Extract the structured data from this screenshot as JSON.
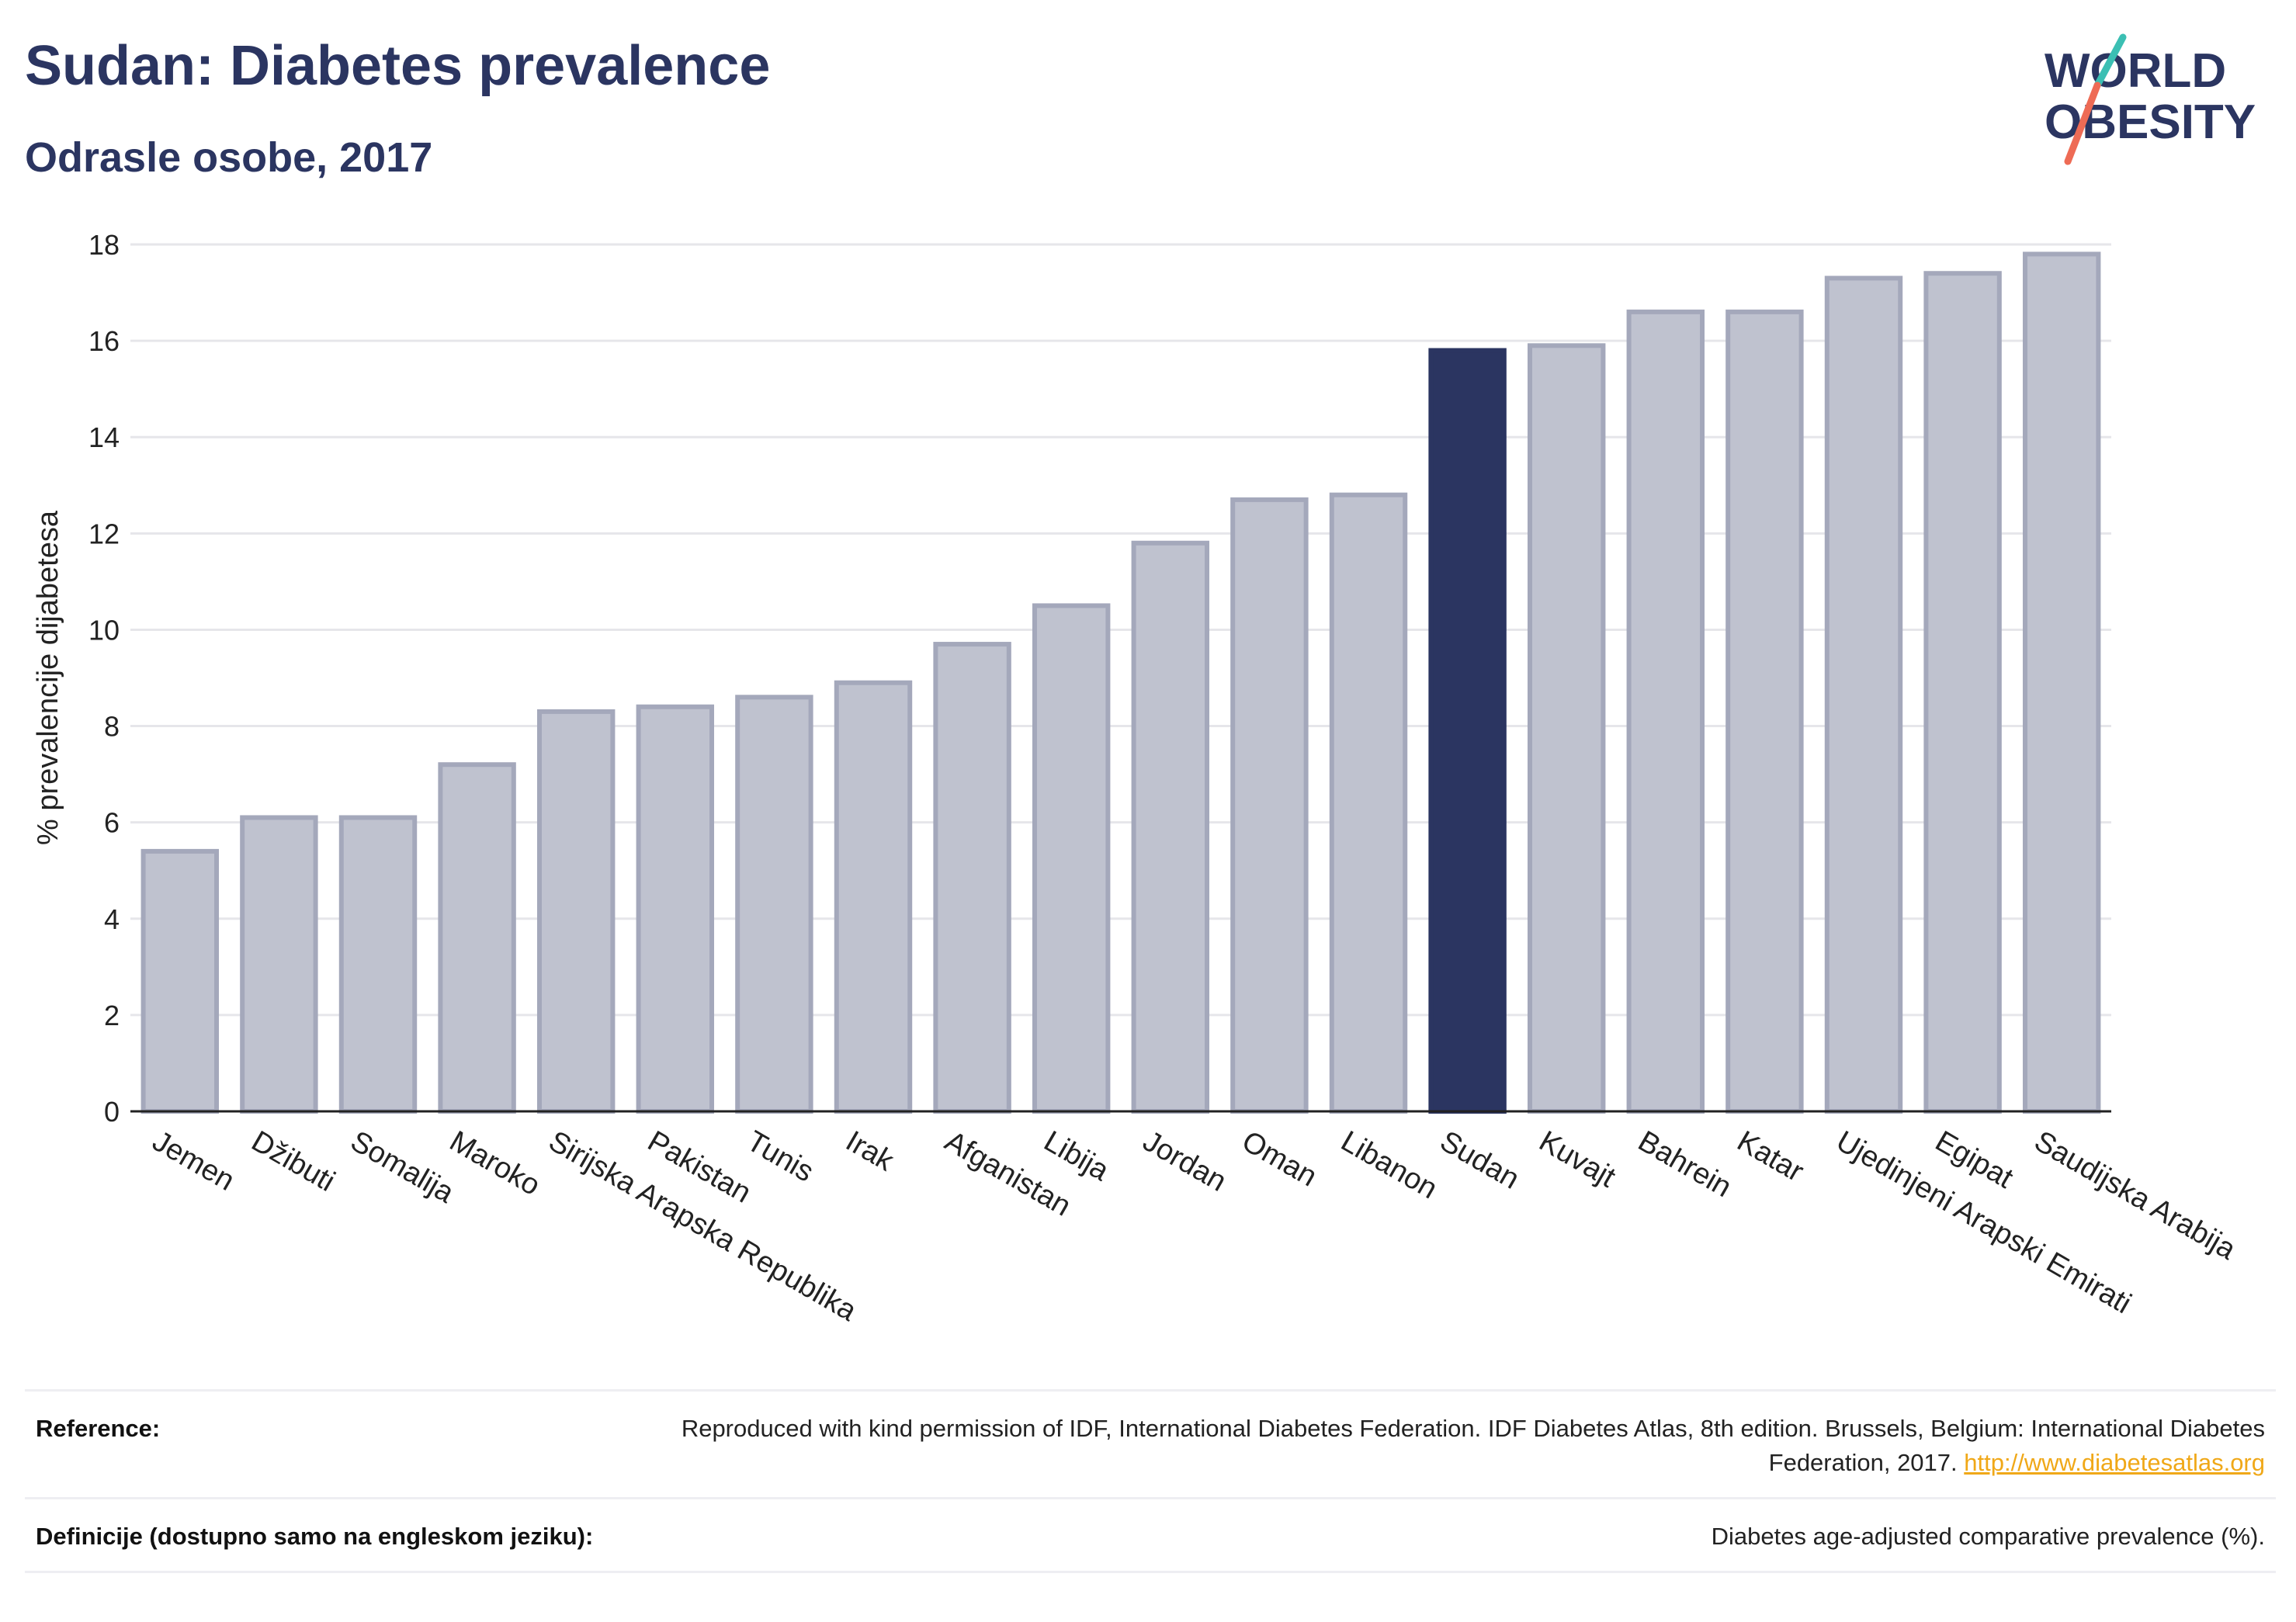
{
  "header": {
    "title": "Sudan: Diabetes prevalence",
    "subtitle": "Odrasle osobe, 2017"
  },
  "logo": {
    "line1": "WORLD",
    "line2": "OBESITY",
    "colors": {
      "text": "#2b3561",
      "slash_teal": "#3bbfb3",
      "slash_coral": "#ee6b55"
    }
  },
  "chart_data": {
    "type": "bar",
    "title": "",
    "xlabel": "",
    "ylabel": "% prevalencije dijabetesa",
    "ylim": [
      0,
      18
    ],
    "yticks": [
      0,
      2,
      4,
      6,
      8,
      10,
      12,
      14,
      16,
      18
    ],
    "grid": true,
    "highlight": "Sudan",
    "colors": {
      "bar": "#bfc2cf",
      "bar_edge": "#a4a8bb",
      "highlight": "#2b3561"
    },
    "categories": [
      "Jemen",
      "Džibuti",
      "Somalija",
      "Maroko",
      "Sirijska Arapska Republika",
      "Pakistan",
      "Tunis",
      "Irak",
      "Afganistan",
      "Libija",
      "Jordan",
      "Oman",
      "Libanon",
      "Sudan",
      "Kuvajt",
      "Bahrein",
      "Katar",
      "Ujedinjeni Arapski Emirati",
      "Egipat",
      "Saudijska Arabija"
    ],
    "values": [
      5.4,
      6.1,
      6.1,
      7.2,
      8.3,
      8.4,
      8.6,
      8.9,
      9.7,
      10.5,
      11.8,
      12.7,
      12.8,
      15.8,
      15.9,
      16.6,
      16.6,
      17.3,
      17.4,
      17.8
    ]
  },
  "references": [
    {
      "label": "Reference:",
      "text": "Reproduced with kind permission of IDF, International Diabetes Federation. IDF Diabetes Atlas, 8th edition. Brussels, Belgium: International Diabetes Federation, 2017.",
      "link": "http://www.diabetesatlas.org"
    },
    {
      "label": "Definicije (dostupno samo na engleskom jeziku):",
      "text": "Diabetes age-adjusted comparative prevalence (%).",
      "link": ""
    }
  ]
}
